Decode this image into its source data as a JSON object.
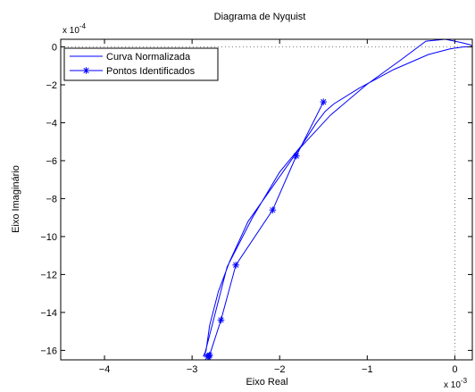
{
  "chart_data": {
    "type": "line",
    "title": "Diagrama de Nyquist",
    "xlabel": "Eixo Real",
    "ylabel": "Eixo Imaginário",
    "x_multiplier_label": "x 10",
    "x_multiplier_exp": "-3",
    "y_multiplier_label": "x 10",
    "y_multiplier_exp": "-4",
    "xlim": [
      -0.0045,
      0.0002
    ],
    "ylim": [
      -0.00165,
      4e-05
    ],
    "x_ticks": [
      -0.004,
      -0.003,
      -0.002,
      -0.001,
      0
    ],
    "x_tick_labels": [
      "−4",
      "−3",
      "−2",
      "−1",
      "0"
    ],
    "y_ticks": [
      0,
      -0.0002,
      -0.0004,
      -0.0006,
      -0.0008,
      -0.001,
      -0.0012,
      -0.0014,
      -0.0016
    ],
    "y_tick_labels": [
      "0",
      "−2",
      "−4",
      "−6",
      "−8",
      "−10",
      "−12",
      "−14",
      "−16"
    ],
    "grid": "dotted at x=0 and y=0 only",
    "legend_position": "top-left",
    "series": [
      {
        "name": "Curva Normalizada",
        "color": "#0000ff",
        "marker": "none",
        "x": [
          0.0002,
          0.00018,
          0.0001,
          0.0,
          -0.00011,
          -0.00033,
          -0.00062,
          -0.00101,
          -0.00142,
          -0.00178,
          -0.00207,
          -0.00236,
          -0.00257,
          -0.0027,
          -0.0028,
          -0.00284,
          -0.00286,
          -0.00287,
          -0.00285,
          -0.0026,
          -0.00231,
          -0.002,
          -0.00175,
          -0.00158,
          -0.00148,
          -0.00138,
          -0.0011,
          -0.0007,
          -0.0003,
          -5e-05,
          0.0001,
          0.0002
        ],
        "y": [
          0.0,
          1e-05,
          2e-05,
          3e-05,
          4e-05,
          3e-05,
          -7e-05,
          -0.0002,
          -0.00036,
          -0.00054,
          -0.00073,
          -0.00092,
          -0.00113,
          -0.00129,
          -0.00147,
          -0.0016,
          -0.00163,
          -0.00163,
          -0.00161,
          -0.00116,
          -0.0009,
          -0.00066,
          -0.00052,
          -0.0004,
          -0.00034,
          -0.0003,
          -0.00022,
          -0.00012,
          -4e-05,
          -1e-05,
          0.0,
          0.0
        ]
      },
      {
        "name": "Pontos Identificados",
        "color": "#0000ff",
        "marker": "asterisk",
        "x": [
          -0.0015,
          -0.00181,
          -0.00208,
          -0.0025,
          -0.00267,
          -0.0028,
          -0.00281,
          -0.00282
        ],
        "y": [
          -0.00029,
          -0.000575,
          -0.00086,
          -0.00115,
          -0.00144,
          -0.001625,
          -0.00163,
          -0.001635
        ]
      }
    ]
  }
}
